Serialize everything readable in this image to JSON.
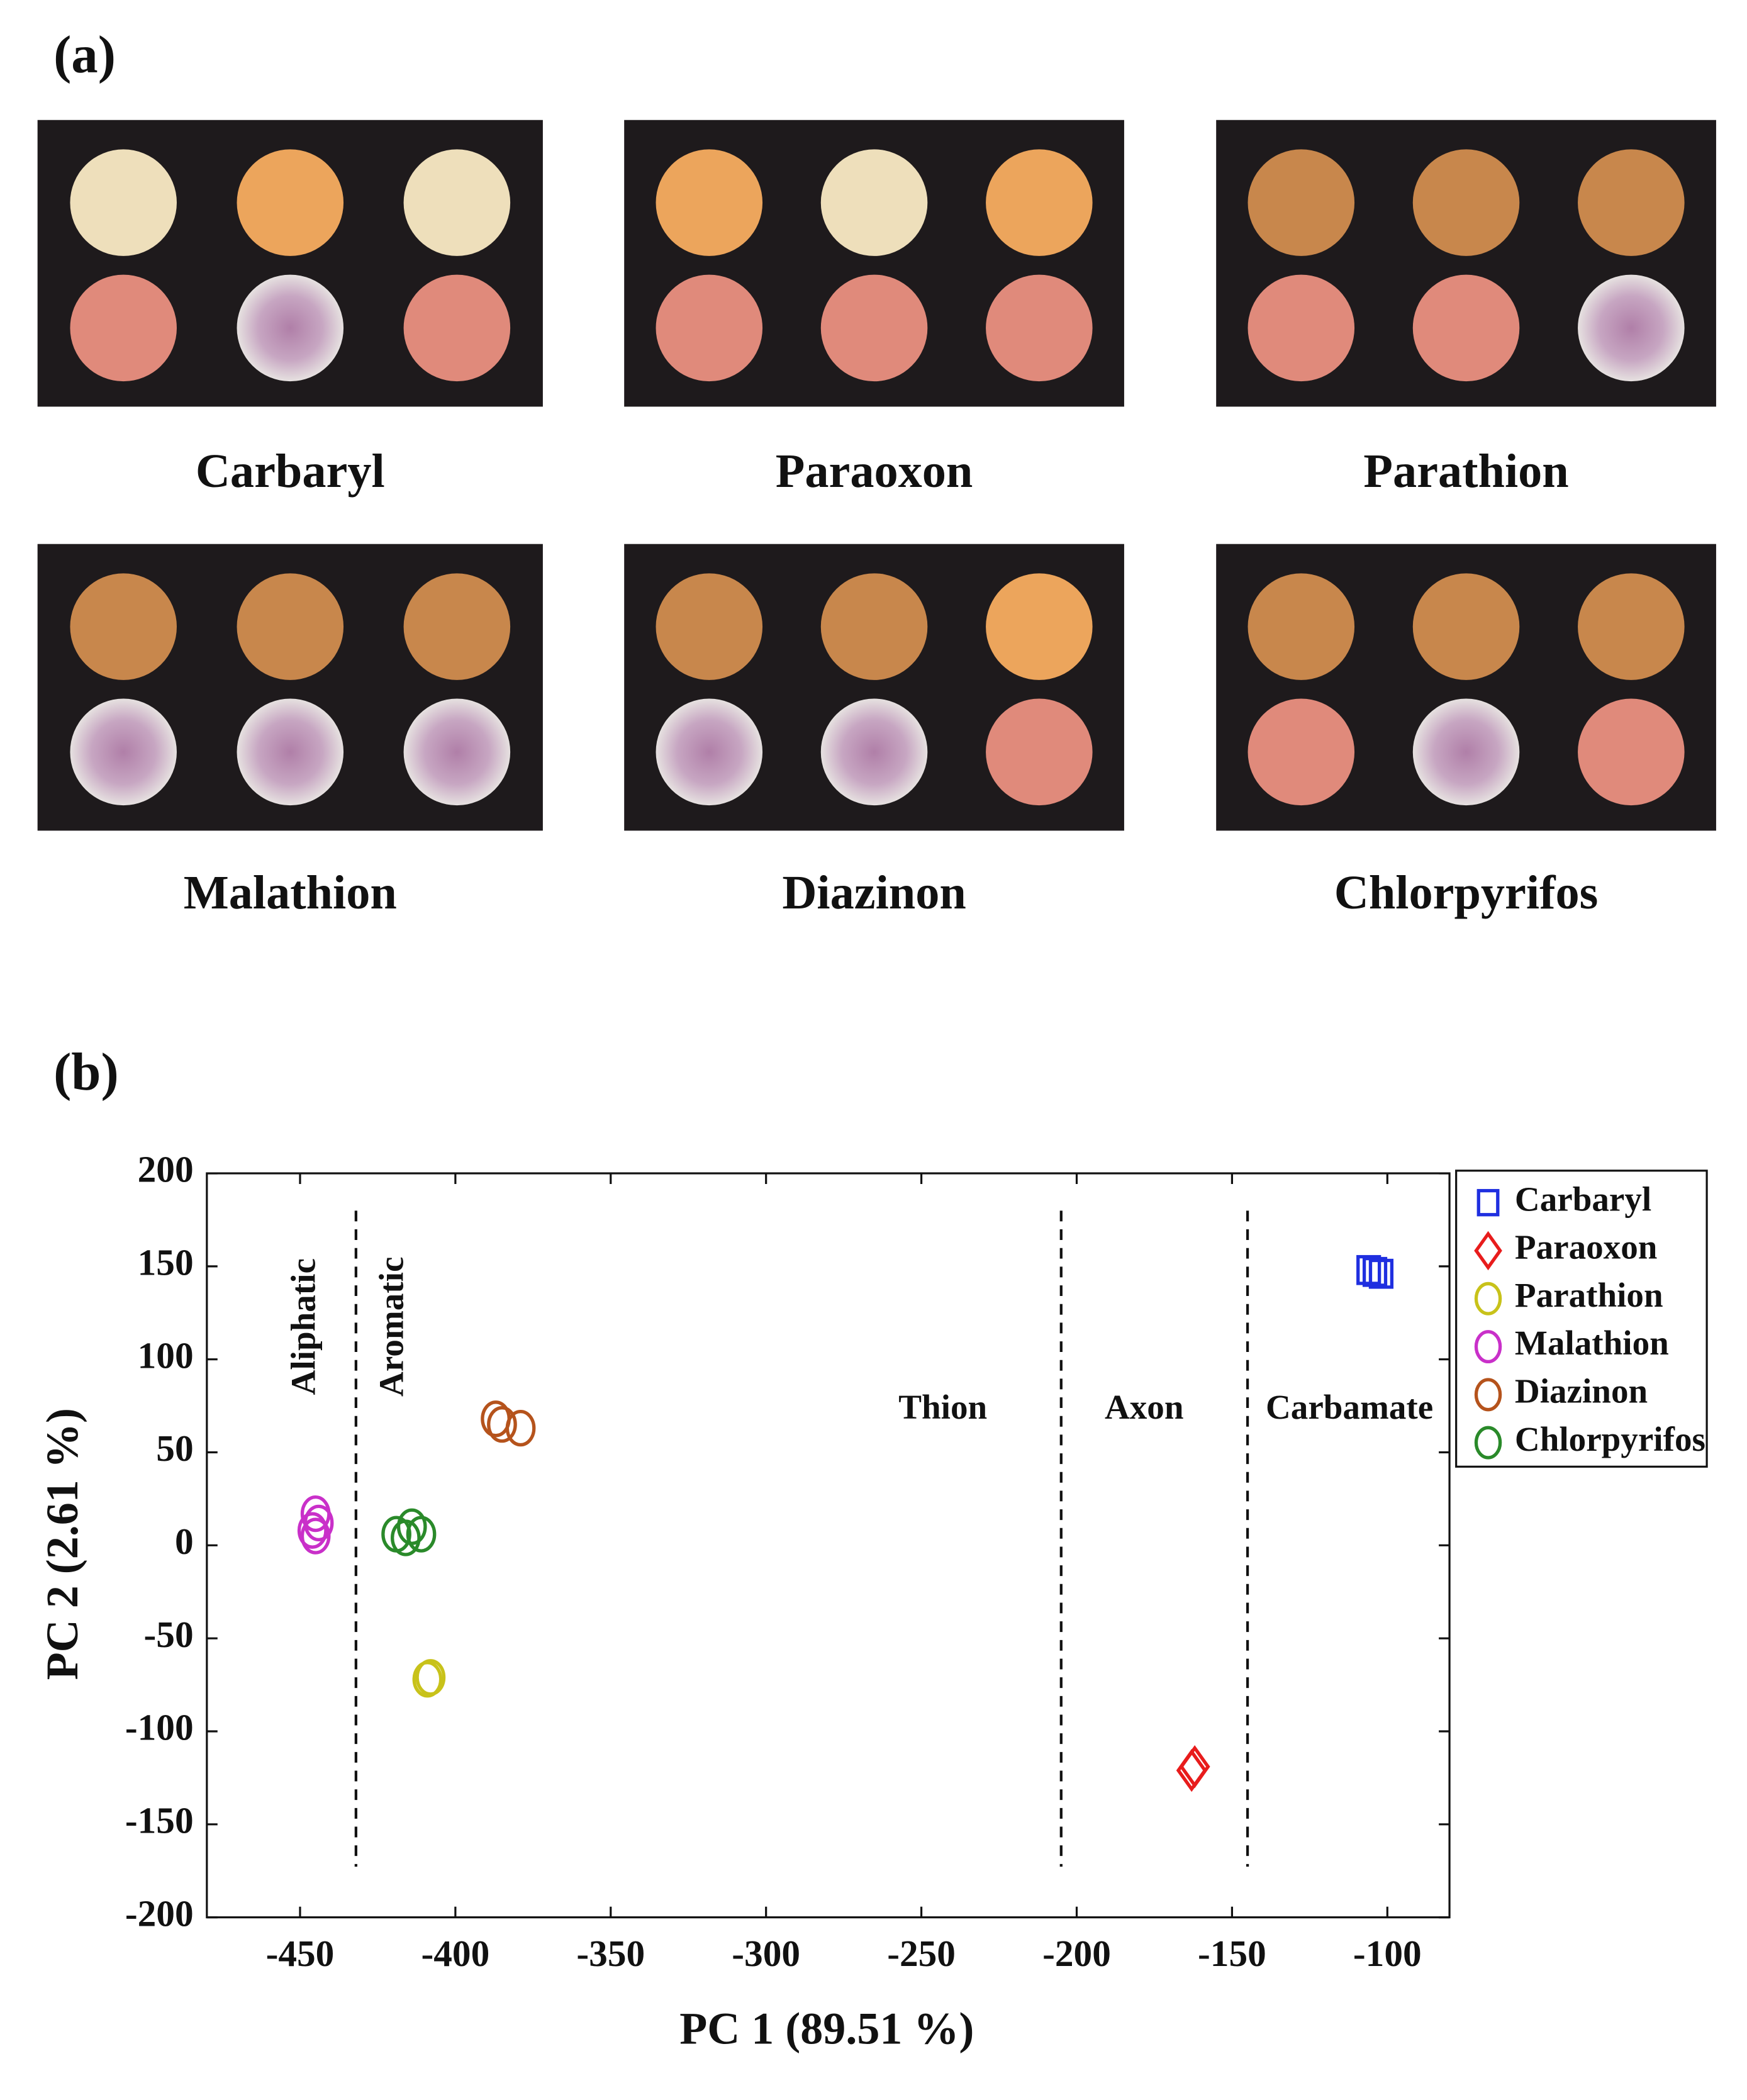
{
  "panel_a": {
    "label": "(a)",
    "samples": [
      "Carbaryl",
      "Paraoxon",
      "Parathion",
      "Malathion",
      "Diazinon",
      "Chlorpyrifos"
    ]
  },
  "panel_b_label": "(b)",
  "chart_data": {
    "type": "scatter",
    "xlabel": "PC 1 (89.51 %)",
    "ylabel": "PC 2 (2.61 %)",
    "xlim": [
      -480,
      -80
    ],
    "ylim": [
      -200,
      200
    ],
    "xticks": [
      -450,
      -400,
      -350,
      -300,
      -250,
      -200,
      -150,
      -100
    ],
    "yticks": [
      -200,
      -150,
      -100,
      -50,
      0,
      50,
      100,
      150,
      200
    ],
    "dividers": [
      -432,
      -205,
      -145
    ],
    "annotations": [
      "Aliphatic",
      "Aromatic",
      "Thion",
      "Axon",
      "Carbamate"
    ],
    "legend": "outside upper right",
    "series": [
      {
        "name": "Carbaryl",
        "color": "#1f2fe0",
        "marker": "square",
        "x": [
          -106,
          -104,
          -102
        ],
        "y": [
          148,
          147,
          146
        ]
      },
      {
        "name": "Paraoxon",
        "color": "#e81c1c",
        "marker": "diamond",
        "x": [
          -162,
          -163
        ],
        "y": [
          -119,
          -121
        ]
      },
      {
        "name": "Parathion",
        "color": "#c8c21a",
        "marker": "circle",
        "x": [
          -408,
          -409
        ],
        "y": [
          -71,
          -72
        ]
      },
      {
        "name": "Malathion",
        "color": "#c930c9",
        "marker": "circle",
        "x": [
          -445,
          -444,
          -446,
          -445
        ],
        "y": [
          17,
          12,
          8,
          5
        ]
      },
      {
        "name": "Diazinon",
        "color": "#b5531c",
        "marker": "circle",
        "x": [
          -387,
          -385,
          -379
        ],
        "y": [
          68,
          65,
          63
        ]
      },
      {
        "name": "Chlorpyrifos",
        "color": "#2a8a2a",
        "marker": "circle",
        "x": [
          -419,
          -414,
          -411,
          -416
        ],
        "y": [
          6,
          10,
          6,
          4
        ]
      }
    ]
  }
}
